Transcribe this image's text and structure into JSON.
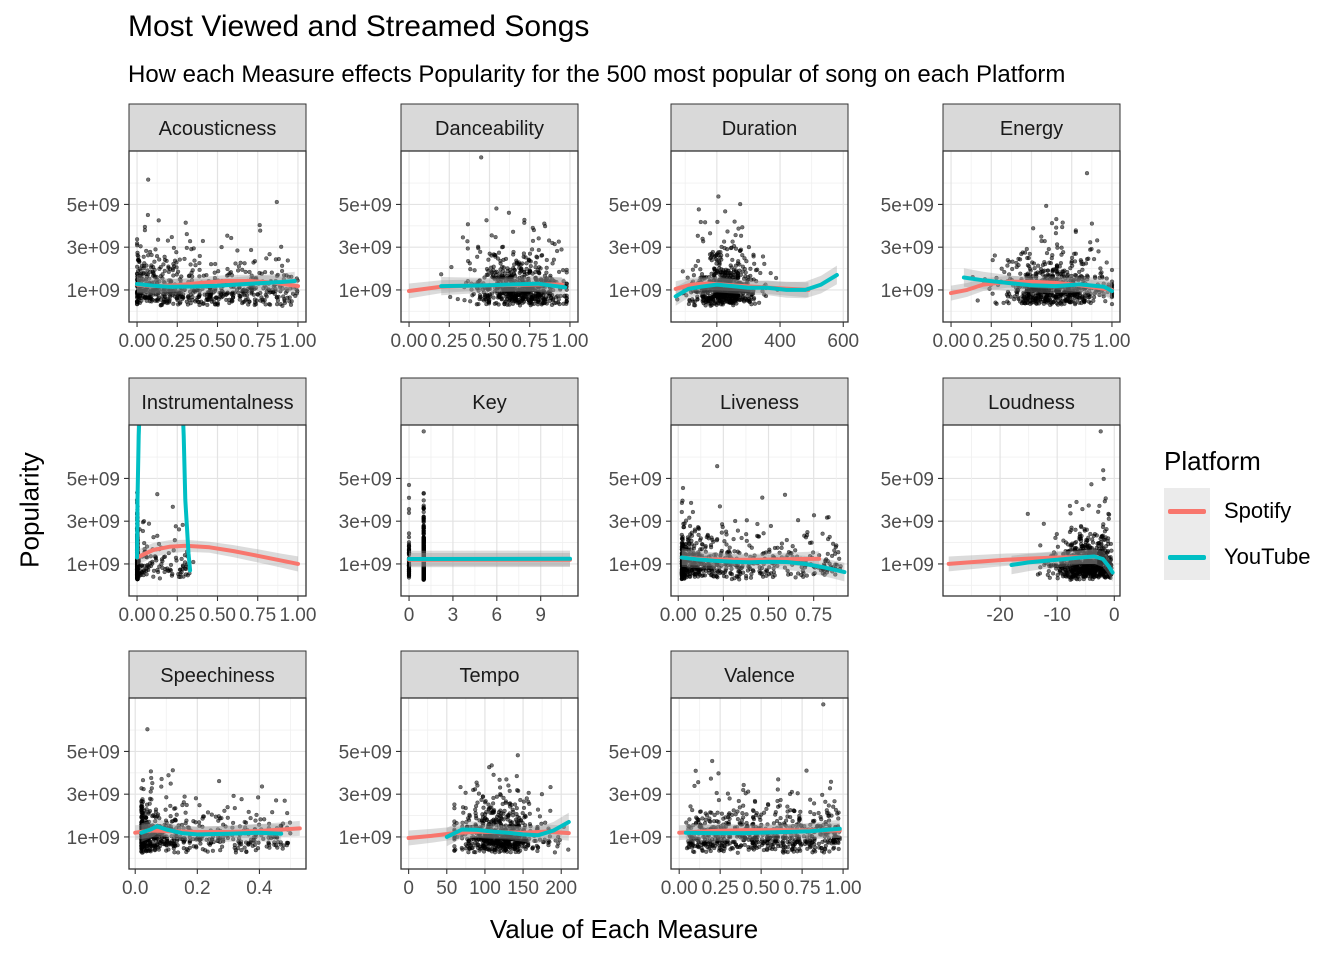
{
  "title": "Most Viewed and Streamed Songs",
  "subtitle": "How each Measure effects Popularity for the 500 most popular of song on each Platform",
  "legend": {
    "title": "Platform",
    "items": [
      {
        "label": "Spotify",
        "color": "#F8766D"
      },
      {
        "label": "YouTube",
        "color": "#00BFC4"
      }
    ]
  },
  "chart_data": {
    "type": "scatter",
    "layout": "facet_wrap 4 columns, free x scales, shared y scale",
    "xlabel": "Value of Each Measure",
    "ylabel": "Popularity",
    "y_ticks": [
      1000000000,
      3000000000,
      5000000000
    ],
    "y_tick_labels": [
      "1e+09",
      "3e+09",
      "5e+09"
    ],
    "ylim": [
      -500000000,
      7500000000
    ],
    "point_color": "#000000",
    "ribbon_color": "#999999",
    "legend_position": "right",
    "series_colors": {
      "Spotify": "#F8766D",
      "YouTube": "#00BFC4"
    },
    "facets": [
      {
        "name": "Acousticness",
        "xlim": [
          -0.05,
          1.05
        ],
        "xticks": [
          0,
          0.25,
          0.5,
          0.75,
          1
        ],
        "xtick_labels": [
          "0.00",
          "0.25",
          "0.50",
          "0.75",
          "1.00"
        ],
        "points": {
          "dist": "uniform",
          "x_range": [
            0,
            1
          ],
          "x_skew": 1.8
        },
        "smooths": [
          {
            "name": "Spotify",
            "x": [
              0,
              0.1,
              0.25,
              0.4,
              0.55,
              0.7,
              0.85,
              1.0
            ],
            "y": [
              1250000000,
              1180000000,
              1220000000,
              1330000000,
              1420000000,
              1420000000,
              1340000000,
              1180000000
            ]
          },
          {
            "name": "YouTube",
            "x": [
              0,
              0.1,
              0.2,
              0.35,
              0.5,
              0.65,
              0.8,
              0.9,
              0.98
            ],
            "y": [
              1280000000,
              1200000000,
              1150000000,
              1160000000,
              1200000000,
              1270000000,
              1330000000,
              1370000000,
              1420000000
            ]
          }
        ]
      },
      {
        "name": "Danceability",
        "xlim": [
          -0.05,
          1.05
        ],
        "xticks": [
          0,
          0.25,
          0.5,
          0.75,
          1
        ],
        "xtick_labels": [
          "0.00",
          "0.25",
          "0.50",
          "0.75",
          "1.00"
        ],
        "points": {
          "dist": "normal",
          "x_mean": 0.68,
          "x_sd": 0.15,
          "x_range": [
            0.2,
            0.98
          ]
        },
        "smooths": [
          {
            "name": "Spotify",
            "x": [
              0,
              0.1,
              0.2,
              0.35,
              0.5,
              0.65,
              0.8,
              0.95
            ],
            "y": [
              950000000,
              1050000000,
              1150000000,
              1200000000,
              1220000000,
              1230000000,
              1260000000,
              1250000000
            ]
          },
          {
            "name": "YouTube",
            "x": [
              0.2,
              0.35,
              0.5,
              0.65,
              0.8,
              0.97
            ],
            "y": [
              1180000000,
              1200000000,
              1220000000,
              1260000000,
              1290000000,
              1120000000
            ]
          }
        ]
      },
      {
        "name": "Duration",
        "xlim": [
          55,
          615
        ],
        "xticks": [
          200,
          400,
          600
        ],
        "xtick_labels": [
          "200",
          "400",
          "600"
        ],
        "points": {
          "dist": "normal",
          "x_mean": 225,
          "x_sd": 50,
          "x_range": [
            70,
            590
          ]
        },
        "smooths": [
          {
            "name": "Spotify",
            "x": [
              70,
              120,
              170,
              220,
              270,
              320,
              370,
              430,
              490
            ],
            "y": [
              1050000000,
              1250000000,
              1300000000,
              1250000000,
              1200000000,
              1150000000,
              1100000000,
              1050000000,
              1000000000
            ]
          },
          {
            "name": "YouTube",
            "x": [
              70,
              110,
              150,
              200,
              250,
              300,
              360,
              420,
              480,
              530,
              580
            ],
            "y": [
              700000000,
              1050000000,
              1150000000,
              1250000000,
              1180000000,
              1100000000,
              1100000000,
              1000000000,
              1000000000,
              1250000000,
              1700000000
            ]
          }
        ]
      },
      {
        "name": "Energy",
        "xlim": [
          -0.05,
          1.05
        ],
        "xticks": [
          0,
          0.25,
          0.5,
          0.75,
          1
        ],
        "xtick_labels": [
          "0.00",
          "0.25",
          "0.50",
          "0.75",
          "1.00"
        ],
        "points": {
          "dist": "normal",
          "x_mean": 0.64,
          "x_sd": 0.17,
          "x_range": [
            0.03,
            1.0
          ]
        },
        "smooths": [
          {
            "name": "Spotify",
            "x": [
              0,
              0.1,
              0.2,
              0.35,
              0.5,
              0.65,
              0.8,
              1.0
            ],
            "y": [
              850000000,
              1000000000,
              1250000000,
              1380000000,
              1380000000,
              1330000000,
              1220000000,
              1000000000
            ]
          },
          {
            "name": "YouTube",
            "x": [
              0.08,
              0.2,
              0.35,
              0.5,
              0.65,
              0.8,
              0.95,
              1.0
            ],
            "y": [
              1580000000,
              1450000000,
              1330000000,
              1220000000,
              1180000000,
              1260000000,
              1150000000,
              950000000
            ]
          }
        ]
      },
      {
        "name": "Instrumentalness",
        "xlim": [
          -0.05,
          1.05
        ],
        "xticks": [
          0,
          0.25,
          0.5,
          0.75,
          1
        ],
        "xtick_labels": [
          "0.00",
          "0.25",
          "0.50",
          "0.75",
          "1.00"
        ],
        "points": {
          "dist": "zero_heavy",
          "x_range": [
            0,
            0.35
          ]
        },
        "smooths": [
          {
            "name": "Spotify",
            "x": [
              0,
              0.1,
              0.2,
              0.3,
              0.45,
              0.6,
              0.75,
              0.9,
              1.0
            ],
            "y": [
              1300000000,
              1650000000,
              1800000000,
              1850000000,
              1780000000,
              1600000000,
              1380000000,
              1150000000,
              1000000000
            ]
          },
          {
            "name": "YouTube",
            "x": [
              0,
              0.003,
              0.01,
              0.02
            ],
            "y": [
              1300000000,
              4000000000,
              7000000000,
              9000000000
            ]
          },
          {
            "name": "YouTube",
            "x": [
              0.28,
              0.29,
              0.3,
              0.32,
              0.33
            ],
            "y": [
              9000000000,
              7000000000,
              4000000000,
              1500000000,
              700000000
            ]
          }
        ]
      },
      {
        "name": "Key",
        "xlim": [
          -0.55,
          11.55
        ],
        "xticks": [
          0,
          3,
          6,
          9
        ],
        "xtick_labels": [
          "0",
          "3",
          "6",
          "9"
        ],
        "points": {
          "dist": "discrete",
          "x_values": [
            0,
            1,
            2,
            3,
            4,
            5,
            6,
            7,
            8,
            9,
            10,
            11
          ]
        },
        "smooths": [
          {
            "name": "Spotify",
            "x": [
              0,
              11
            ],
            "y": [
              1200000000,
              1200000000
            ]
          },
          {
            "name": "YouTube",
            "x": [
              0,
              11
            ],
            "y": [
              1230000000,
              1240000000
            ]
          }
        ]
      },
      {
        "name": "Liveness",
        "xlim": [
          -0.04,
          0.94
        ],
        "xticks": [
          0,
          0.25,
          0.5,
          0.75
        ],
        "xtick_labels": [
          "0.00",
          "0.25",
          "0.50",
          "0.75"
        ],
        "points": {
          "dist": "skew",
          "x_range": [
            0.02,
            0.9
          ],
          "x_skew": 2.8
        },
        "smooths": [
          {
            "name": "Spotify",
            "x": [
              0.02,
              0.15,
              0.3,
              0.45,
              0.6,
              0.78
            ],
            "y": [
              1300000000,
              1220000000,
              1200000000,
              1200000000,
              1220000000,
              1240000000
            ]
          },
          {
            "name": "YouTube",
            "x": [
              0.02,
              0.1,
              0.2,
              0.3,
              0.4,
              0.5,
              0.6,
              0.7,
              0.8,
              0.92
            ],
            "y": [
              1300000000,
              1220000000,
              1150000000,
              1100000000,
              1080000000,
              1100000000,
              1090000000,
              1000000000,
              850000000,
              620000000
            ]
          }
        ]
      },
      {
        "name": "Loudness",
        "xlim": [
          -30.0,
          1.0
        ],
        "xticks": [
          -20,
          -10,
          0
        ],
        "xtick_labels": [
          "-20",
          "-10",
          "0"
        ],
        "points": {
          "dist": "skew_high",
          "x_range": [
            -18,
            -0.5
          ],
          "x_peak": -5
        },
        "smooths": [
          {
            "name": "Spotify",
            "x": [
              -29,
              -24,
              -19,
              -14,
              -10,
              -6,
              -3
            ],
            "y": [
              1000000000,
              1100000000,
              1200000000,
              1260000000,
              1300000000,
              1320000000,
              1330000000
            ]
          },
          {
            "name": "YouTube",
            "x": [
              -18,
              -15,
              -12,
              -9,
              -6,
              -3.5,
              -2,
              -1,
              -0.3
            ],
            "y": [
              950000000,
              1070000000,
              1150000000,
              1220000000,
              1300000000,
              1350000000,
              1230000000,
              900000000,
              600000000
            ]
          }
        ]
      },
      {
        "name": "Speechiness",
        "xlim": [
          -0.02,
          0.55
        ],
        "xticks": [
          0,
          0.2,
          0.4
        ],
        "xtick_labels": [
          "0.0",
          "0.2",
          "0.4"
        ],
        "points": {
          "dist": "skew",
          "x_range": [
            0.02,
            0.5
          ],
          "x_skew": 3.0
        },
        "smooths": [
          {
            "name": "Spotify",
            "x": [
              0,
              0.05,
              0.1,
              0.2,
              0.3,
              0.4,
              0.53
            ],
            "y": [
              1200000000,
              1300000000,
              1280000000,
              1230000000,
              1230000000,
              1280000000,
              1400000000
            ]
          },
          {
            "name": "YouTube",
            "x": [
              0.02,
              0.05,
              0.07,
              0.1,
              0.15,
              0.2,
              0.3,
              0.4,
              0.47
            ],
            "y": [
              1200000000,
              1350000000,
              1500000000,
              1350000000,
              1180000000,
              1120000000,
              1150000000,
              1200000000,
              1150000000
            ]
          }
        ]
      },
      {
        "name": "Tempo",
        "xlim": [
          -10,
          222
        ],
        "xticks": [
          0,
          50,
          100,
          150,
          200
        ],
        "xtick_labels": [
          "0",
          "50",
          "100",
          "150",
          "200"
        ],
        "points": {
          "dist": "normal",
          "x_mean": 120,
          "x_sd": 28,
          "x_range": [
            60,
            210
          ]
        },
        "smooths": [
          {
            "name": "Spotify",
            "x": [
              0,
              30,
              60,
              90,
              120,
              150,
              180,
              210
            ],
            "y": [
              950000000,
              1050000000,
              1180000000,
              1250000000,
              1220000000,
              1200000000,
              1250000000,
              1180000000
            ]
          },
          {
            "name": "YouTube",
            "x": [
              50,
              70,
              90,
              110,
              130,
              150,
              170,
              190,
              210
            ],
            "y": [
              1000000000,
              1350000000,
              1330000000,
              1250000000,
              1200000000,
              1120000000,
              1080000000,
              1300000000,
              1700000000
            ]
          }
        ]
      },
      {
        "name": "Valence",
        "xlim": [
          -0.05,
          1.03
        ],
        "xticks": [
          0,
          0.25,
          0.5,
          0.75,
          1
        ],
        "xtick_labels": [
          "0.00",
          "0.25",
          "0.50",
          "0.75",
          "1.00"
        ],
        "points": {
          "dist": "uniform",
          "x_range": [
            0.04,
            0.98
          ],
          "x_skew": 1.0
        },
        "smooths": [
          {
            "name": "Spotify",
            "x": [
              0,
              0.2,
              0.4,
              0.6,
              0.8,
              0.98
            ],
            "y": [
              1200000000,
              1280000000,
              1320000000,
              1320000000,
              1300000000,
              1300000000
            ]
          },
          {
            "name": "YouTube",
            "x": [
              0.04,
              0.2,
              0.4,
              0.6,
              0.8,
              0.98
            ],
            "y": [
              1200000000,
              1180000000,
              1180000000,
              1220000000,
              1270000000,
              1380000000
            ]
          }
        ]
      }
    ]
  }
}
